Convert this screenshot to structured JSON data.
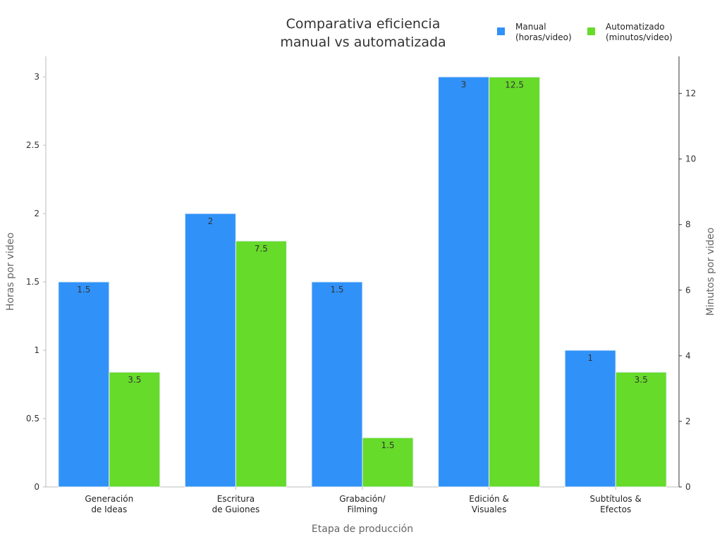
{
  "chart_data": {
    "type": "bar",
    "title_lines": [
      "Comparativa eficiencia",
      "manual vs automatizada"
    ],
    "xlabel": "Etapa de producción",
    "ylabel_left": "Horas por video",
    "ylabel_right": "Minutos por video",
    "categories": [
      [
        "Generación",
        "de Ideas"
      ],
      [
        "Escritura",
        "de Guiones"
      ],
      [
        "Grabación/",
        "Filming"
      ],
      [
        "Edición &",
        "Visuales"
      ],
      [
        "Subtítulos &",
        "Efectos"
      ]
    ],
    "series": [
      {
        "name_lines": [
          "Manual",
          " (horas/video)"
        ],
        "axis": "left",
        "color": "#3092f8",
        "values": [
          1.5,
          2,
          1.5,
          3,
          1
        ],
        "labels": [
          "1.5",
          "2",
          "1.5",
          "3",
          "1"
        ]
      },
      {
        "name_lines": [
          "Automatizado",
          " (minutos/video)"
        ],
        "axis": "right",
        "color": "#66db2a",
        "values": [
          3.5,
          7.5,
          1.5,
          12.5,
          3.5
        ],
        "labels": [
          "3.5",
          "7.5",
          "1.5",
          "12.5",
          "3.5"
        ]
      }
    ],
    "ylim_left": [
      0,
      3.15
    ],
    "ylim_right": [
      0,
      13.13
    ],
    "yticks_left": [
      "0",
      "0.5",
      "1",
      "1.5",
      "2",
      "2.5",
      "3"
    ],
    "yticks_right": [
      "0",
      "2",
      "4",
      "6",
      "8",
      "10",
      "12"
    ],
    "grid": false,
    "legend": "top-right"
  }
}
